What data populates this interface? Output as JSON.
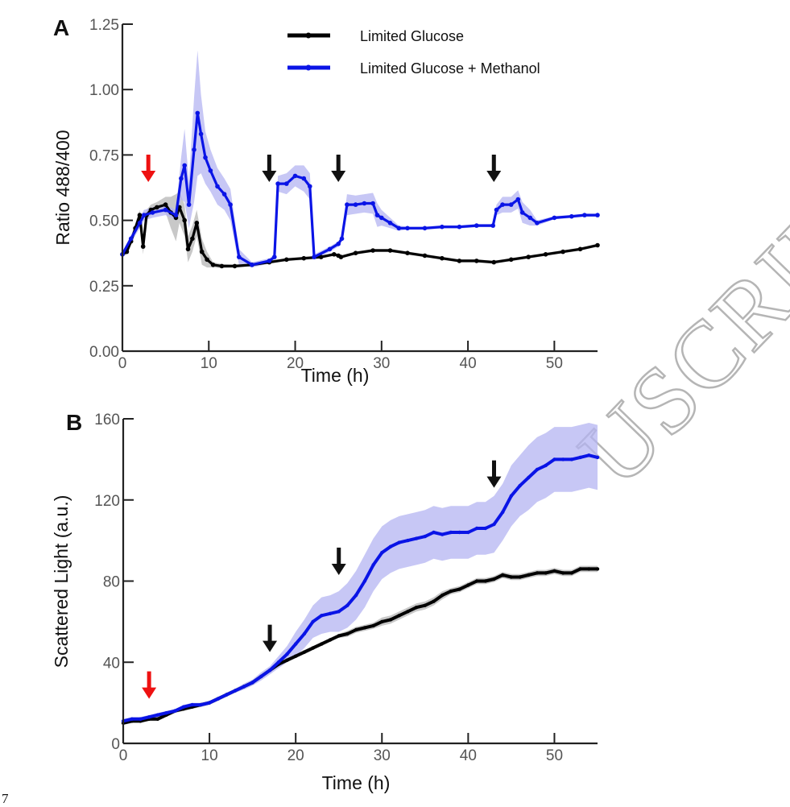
{
  "page_number": "7",
  "watermark": "ACCEPTED MANUSCRIPT",
  "watermark_visible": "USCRIPT",
  "colors": {
    "limited_glucose": "#000000",
    "limited_glucose_band": "#9a9a9a",
    "methanol": "#0a14e6",
    "methanol_band": "#b4b4f2",
    "red_arrow": "#ee1111",
    "black_arrow": "#111111"
  },
  "chart_data": [
    {
      "panel": "A",
      "type": "line",
      "title": "",
      "xlabel": "Time (h)",
      "ylabel": "Ratio 488/400",
      "xlim": [
        0,
        55
      ],
      "ylim": [
        0,
        1.25
      ],
      "xticks": [
        0,
        10,
        20,
        30,
        40,
        50
      ],
      "xtick_labels": [
        "0",
        "10",
        "20",
        "30",
        "40",
        "50"
      ],
      "yticks": [
        0,
        0.25,
        0.5,
        0.75,
        1.0,
        1.25
      ],
      "ytick_labels": [
        "0.00",
        "0.25",
        "0.50",
        "0.75",
        "1.00",
        "1.25"
      ],
      "grid": false,
      "legend_position": "top-center",
      "legend": [
        "Limited Glucose",
        "Limited Glucose + Methanol"
      ],
      "arrows": [
        {
          "x": 3,
          "color": "red"
        },
        {
          "x": 17,
          "color": "black"
        },
        {
          "x": 25,
          "color": "black"
        },
        {
          "x": 43,
          "color": "black"
        }
      ],
      "series": [
        {
          "name": "Limited Glucose",
          "x": [
            0,
            0.5,
            1,
            1.5,
            2,
            2.4,
            2.8,
            3.3,
            4,
            5,
            5.6,
            6.2,
            6.6,
            7.2,
            7.6,
            8.1,
            8.6,
            9.2,
            9.8,
            10.5,
            11.5,
            13,
            15,
            17,
            19,
            21,
            23,
            24.5,
            25,
            25.3,
            27,
            29,
            31,
            33,
            35,
            37,
            39,
            41,
            43,
            45,
            47,
            49,
            51,
            53,
            55
          ],
          "y": [
            0.37,
            0.38,
            0.42,
            0.47,
            0.52,
            0.4,
            0.52,
            0.54,
            0.55,
            0.56,
            0.53,
            0.51,
            0.55,
            0.5,
            0.39,
            0.43,
            0.49,
            0.38,
            0.35,
            0.33,
            0.325,
            0.325,
            0.33,
            0.34,
            0.35,
            0.355,
            0.36,
            0.37,
            0.365,
            0.36,
            0.375,
            0.385,
            0.385,
            0.375,
            0.365,
            0.355,
            0.345,
            0.345,
            0.34,
            0.35,
            0.36,
            0.37,
            0.38,
            0.39,
            0.405
          ],
          "ci": [
            0.01,
            0.01,
            0.015,
            0.02,
            0.02,
            0.03,
            0.02,
            0.02,
            0.02,
            0.03,
            0.06,
            0.09,
            0.06,
            0.06,
            0.05,
            0.05,
            0.05,
            0.05,
            0.03,
            0.01,
            0.008,
            0.006,
            0.006,
            0.006,
            0.006,
            0.006,
            0.006,
            0.006,
            0.006,
            0.006,
            0.006,
            0.006,
            0.006,
            0.006,
            0.006,
            0.006,
            0.006,
            0.006,
            0.006,
            0.006,
            0.006,
            0.006,
            0.006,
            0.006,
            0.006
          ]
        },
        {
          "name": "Limited Glucose + Methanol",
          "x": [
            0,
            1,
            2,
            2.5,
            3.5,
            5,
            6.2,
            6.8,
            7.2,
            7.7,
            8.3,
            8.7,
            9.1,
            9.6,
            10.2,
            11,
            11.8,
            12.5,
            13.5,
            15,
            17,
            17.6,
            18,
            19,
            20,
            21,
            21.7,
            22.2,
            24,
            25,
            25.4,
            26,
            27,
            28,
            29,
            29.5,
            30,
            31,
            32,
            33,
            35,
            37,
            39,
            41,
            42.9,
            43.3,
            44,
            45,
            45.8,
            46.3,
            47.2,
            48,
            50,
            52,
            53.5,
            55
          ],
          "y": [
            0.37,
            0.43,
            0.49,
            0.52,
            0.53,
            0.54,
            0.52,
            0.66,
            0.71,
            0.56,
            0.77,
            0.91,
            0.83,
            0.74,
            0.69,
            0.63,
            0.6,
            0.56,
            0.36,
            0.33,
            0.345,
            0.36,
            0.64,
            0.64,
            0.67,
            0.66,
            0.63,
            0.36,
            0.39,
            0.41,
            0.43,
            0.56,
            0.56,
            0.565,
            0.565,
            0.52,
            0.51,
            0.49,
            0.47,
            0.47,
            0.47,
            0.475,
            0.475,
            0.48,
            0.48,
            0.54,
            0.56,
            0.56,
            0.58,
            0.53,
            0.51,
            0.49,
            0.51,
            0.515,
            0.52,
            0.52
          ],
          "ci": [
            0.01,
            0.015,
            0.02,
            0.02,
            0.02,
            0.02,
            0.02,
            0.08,
            0.14,
            0.09,
            0.2,
            0.24,
            0.15,
            0.1,
            0.08,
            0.07,
            0.06,
            0.06,
            0.03,
            0.01,
            0.01,
            0.01,
            0.03,
            0.04,
            0.04,
            0.05,
            0.05,
            0.01,
            0.01,
            0.01,
            0.01,
            0.04,
            0.035,
            0.035,
            0.04,
            0.045,
            0.03,
            0.02,
            0.01,
            0.006,
            0.006,
            0.006,
            0.006,
            0.006,
            0.006,
            0.02,
            0.03,
            0.03,
            0.035,
            0.04,
            0.03,
            0.01,
            0.006,
            0.006,
            0.006,
            0.006
          ]
        }
      ]
    },
    {
      "panel": "B",
      "type": "line",
      "title": "",
      "xlabel": "Time (h)",
      "ylabel": "Scattered Light (a.u.)",
      "xlim": [
        0,
        55
      ],
      "ylim": [
        0,
        160
      ],
      "xticks": [
        0,
        10,
        20,
        30,
        40,
        50
      ],
      "xtick_labels": [
        "0",
        "10",
        "20",
        "30",
        "40",
        "50"
      ],
      "yticks": [
        0,
        40,
        80,
        120,
        160
      ],
      "ytick_labels": [
        "0",
        "40",
        "80",
        "120",
        "160"
      ],
      "grid": false,
      "legend_position": "none",
      "arrows": [
        {
          "x": 3,
          "color": "red"
        },
        {
          "x": 17,
          "color": "black"
        },
        {
          "x": 25,
          "color": "black"
        },
        {
          "x": 43,
          "color": "black"
        }
      ],
      "series": [
        {
          "name": "Limited Glucose",
          "x": [
            0,
            1,
            2,
            3,
            4,
            5,
            6,
            7,
            8,
            9,
            10,
            11,
            12,
            13,
            14,
            15,
            16,
            17,
            18,
            19,
            20,
            21,
            22,
            23,
            24,
            25,
            26,
            27,
            28,
            29,
            30,
            31,
            32,
            33,
            34,
            35,
            36,
            37,
            38,
            39,
            40,
            41,
            42,
            43,
            44,
            45,
            46,
            47,
            48,
            49,
            50,
            51,
            52,
            53,
            54,
            55
          ],
          "y": [
            10,
            11,
            11,
            12,
            12,
            14,
            16,
            17,
            18,
            19,
            20,
            22,
            24,
            26,
            28,
            30,
            33,
            36,
            39,
            41,
            43,
            45,
            47,
            49,
            51,
            53,
            54,
            56,
            57,
            58,
            60,
            61,
            63,
            65,
            67,
            68,
            70,
            73,
            75,
            76,
            78,
            80,
            80,
            81,
            83,
            82,
            82,
            83,
            84,
            84,
            85,
            84,
            84,
            86,
            86,
            86
          ],
          "ci": [
            1,
            1,
            1,
            1,
            1,
            1,
            1,
            1,
            1,
            1,
            1,
            1,
            1,
            1,
            1,
            1,
            1,
            1,
            1,
            1,
            1,
            1,
            1,
            1,
            1,
            1,
            1.5,
            1.5,
            1.5,
            1.5,
            2,
            2,
            2,
            2,
            2,
            2,
            2,
            2,
            1.5,
            1.5,
            1.5,
            1.5,
            1.5,
            1.5,
            1.5,
            1.5,
            1.5,
            1.5,
            1.5,
            1.5,
            1.5,
            1.5,
            1.5,
            1.5,
            1.5,
            1.5
          ]
        },
        {
          "name": "Limited Glucose + Methanol",
          "x": [
            0,
            1,
            2,
            3,
            4,
            5,
            6,
            7,
            8,
            9,
            10,
            11,
            12,
            13,
            14,
            15,
            16,
            17,
            18,
            19,
            20,
            21,
            22,
            23,
            24,
            25,
            26,
            27,
            28,
            29,
            30,
            31,
            32,
            33,
            34,
            35,
            36,
            37,
            38,
            39,
            40,
            41,
            42,
            43,
            44,
            45,
            46,
            47,
            48,
            49,
            50,
            51,
            52,
            53,
            54,
            55
          ],
          "y": [
            11,
            12,
            12,
            13,
            14,
            15,
            16,
            18,
            19,
            19,
            20,
            22,
            24,
            26,
            28,
            30,
            33,
            36,
            40,
            44,
            49,
            54,
            60,
            63,
            64,
            65,
            68,
            73,
            80,
            88,
            94,
            97,
            99,
            100,
            101,
            102,
            104,
            103,
            104,
            104,
            104,
            106,
            106,
            108,
            114,
            122,
            127,
            131,
            135,
            137,
            140,
            140,
            140,
            141,
            142,
            141
          ],
          "ci": [
            1,
            1,
            1,
            1,
            1,
            1,
            1,
            1,
            1,
            1,
            1,
            1,
            1,
            1,
            1.5,
            1.5,
            2,
            2,
            3,
            4,
            6,
            7,
            8,
            9,
            9,
            10,
            11,
            12,
            13,
            13,
            13,
            13,
            13,
            13,
            13,
            13,
            13,
            13,
            13,
            13,
            13,
            13,
            13,
            14,
            14,
            15,
            15,
            16,
            16,
            16,
            16,
            16,
            16,
            16,
            16,
            16
          ]
        }
      ]
    }
  ]
}
